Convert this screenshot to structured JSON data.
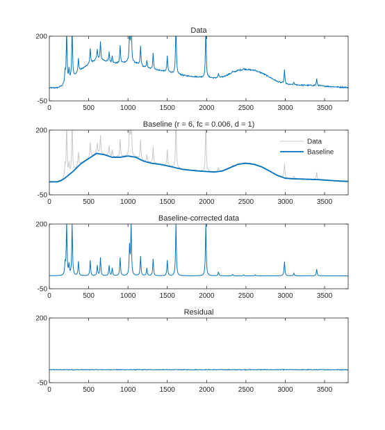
{
  "chart_data": [
    {
      "type": "line",
      "title": "Data",
      "xlim": [
        0,
        3800
      ],
      "ylim": [
        -50,
        200
      ],
      "yticks": [
        -50,
        200
      ],
      "xticks": [
        0,
        500,
        1000,
        1500,
        2000,
        2500,
        3000,
        3500
      ],
      "xlabel": "",
      "ylabel": "",
      "series": [
        {
          "role": "data",
          "color": "#0072BD",
          "x": [
            0,
            100,
            150,
            200,
            300,
            400,
            500,
            600,
            700,
            800,
            900,
            1000,
            1100,
            1200,
            1300,
            1400,
            1500,
            1600,
            1700,
            1800,
            1900,
            2000,
            2100,
            2200,
            2300,
            2400,
            2500,
            2600,
            2700,
            2800,
            2900,
            3000,
            3100,
            3200,
            3300,
            3400,
            3500,
            3600,
            3700,
            3800
          ],
          "y": [
            0,
            0,
            5,
            15,
            40,
            70,
            90,
            110,
            105,
            95,
            95,
            100,
            95,
            80,
            72,
            68,
            62,
            55,
            48,
            45,
            42,
            40,
            38,
            42,
            55,
            68,
            72,
            68,
            58,
            42,
            25,
            14,
            12,
            11,
            10,
            9,
            7,
            5,
            3,
            2
          ]
        }
      ],
      "peaks": [
        {
          "x": 220,
          "y": 200
        },
        {
          "x": 290,
          "y": 200
        },
        {
          "x": 200,
          "y": 45
        },
        {
          "x": 250,
          "y": 40
        },
        {
          "x": 370,
          "y": 55
        },
        {
          "x": 520,
          "y": 60
        },
        {
          "x": 610,
          "y": 40
        },
        {
          "x": 650,
          "y": 70
        },
        {
          "x": 760,
          "y": 40
        },
        {
          "x": 800,
          "y": 30
        },
        {
          "x": 900,
          "y": 70
        },
        {
          "x": 1020,
          "y": 110
        },
        {
          "x": 1040,
          "y": 200
        },
        {
          "x": 1160,
          "y": 75
        },
        {
          "x": 1240,
          "y": 30
        },
        {
          "x": 1320,
          "y": 65
        },
        {
          "x": 1500,
          "y": 60
        },
        {
          "x": 1610,
          "y": 200
        },
        {
          "x": 1990,
          "y": 200
        },
        {
          "x": 2150,
          "y": 15
        },
        {
          "x": 2330,
          "y": 5
        },
        {
          "x": 2470,
          "y": 4
        },
        {
          "x": 2620,
          "y": 4
        },
        {
          "x": 2990,
          "y": 55
        },
        {
          "x": 3110,
          "y": 10
        },
        {
          "x": 3400,
          "y": 25
        }
      ]
    },
    {
      "type": "line",
      "title": "Baseline (r = 6, fc = 0.006, d = 1)",
      "xlim": [
        0,
        3800
      ],
      "ylim": [
        -50,
        200
      ],
      "yticks": [
        -50,
        200
      ],
      "xticks": [
        0,
        500,
        1000,
        1500,
        2000,
        2500,
        3000,
        3500
      ],
      "xlabel": "",
      "ylabel": "",
      "legend": "top-right",
      "series": [
        {
          "name": "Data",
          "role": "data",
          "color": "#C8C8C8"
        },
        {
          "name": "Baseline",
          "role": "baseline",
          "color": "#0072BD",
          "x": [
            0,
            100,
            150,
            200,
            300,
            400,
            500,
            600,
            700,
            800,
            900,
            1000,
            1100,
            1200,
            1300,
            1400,
            1500,
            1600,
            1700,
            1800,
            1900,
            2000,
            2100,
            2200,
            2300,
            2400,
            2500,
            2600,
            2700,
            2800,
            2900,
            3000,
            3100,
            3200,
            3300,
            3400,
            3500,
            3600,
            3700,
            3800
          ],
          "y": [
            0,
            0,
            5,
            15,
            40,
            70,
            90,
            110,
            105,
            95,
            95,
            100,
            95,
            80,
            72,
            68,
            62,
            55,
            48,
            45,
            42,
            40,
            38,
            42,
            55,
            68,
            72,
            68,
            58,
            42,
            25,
            14,
            12,
            11,
            10,
            9,
            7,
            5,
            3,
            2
          ]
        }
      ]
    },
    {
      "type": "line",
      "title": "Baseline-corrected data",
      "xlim": [
        0,
        3800
      ],
      "ylim": [
        -50,
        200
      ],
      "yticks": [
        -50,
        200
      ],
      "xticks": [
        0,
        500,
        1000,
        1500,
        2000,
        2500,
        3000,
        3500
      ],
      "xlabel": "",
      "ylabel": "",
      "series": [
        {
          "role": "corrected",
          "color": "#0072BD"
        }
      ]
    },
    {
      "type": "line",
      "title": "Residual",
      "xlim": [
        0,
        3800
      ],
      "ylim": [
        -50,
        200
      ],
      "yticks": [
        -50,
        200
      ],
      "xticks": [
        0,
        500,
        1000,
        1500,
        2000,
        2500,
        3000,
        3500
      ],
      "xlabel": "",
      "ylabel": "",
      "series": [
        {
          "role": "residual",
          "color": "#0072BD",
          "x": [
            0,
            3800
          ],
          "y": [
            0,
            0
          ],
          "noise_amplitude": 2
        }
      ]
    }
  ]
}
